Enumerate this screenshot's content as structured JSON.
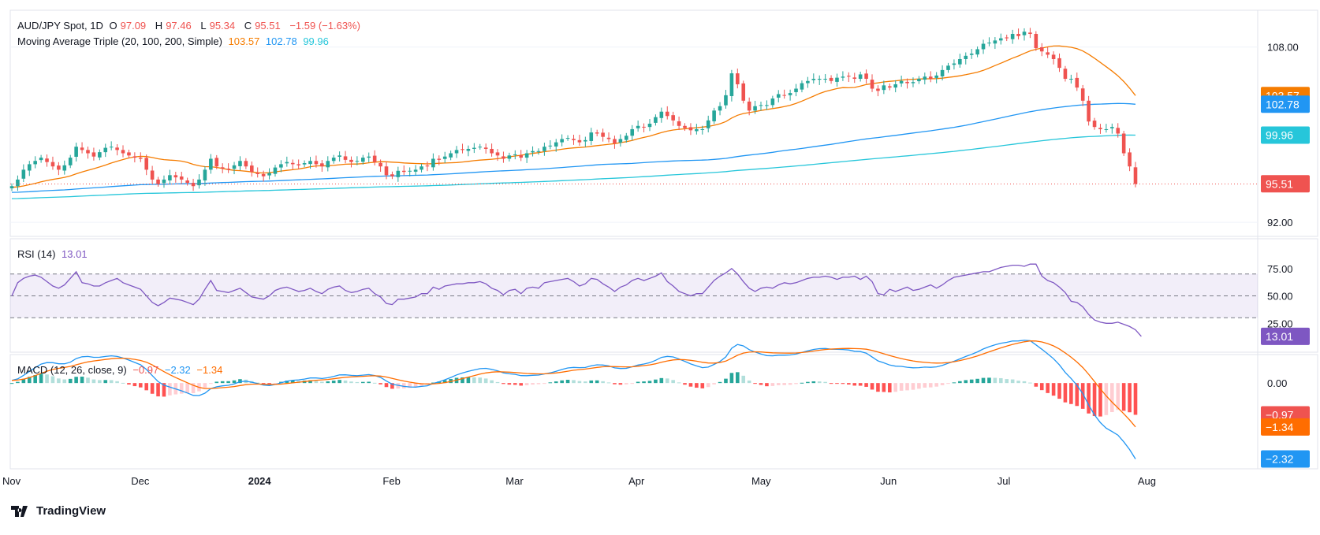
{
  "colors": {
    "up": "#26a69a",
    "down": "#ef5350",
    "ma20": "#f57c00",
    "ma100": "#2196f3",
    "ma200": "#26c6da",
    "rsi": "#7e57c2",
    "macd": "#2196f3",
    "signal": "#ff6d00",
    "grid": "#f0f3fa",
    "text": "#131722",
    "axis": "#131722"
  },
  "header": {
    "symbol": "AUD/JPY Spot, 1D",
    "o_label": "O",
    "o": "97.09",
    "h_label": "H",
    "h": "97.46",
    "l_label": "L",
    "l": "95.34",
    "c_label": "C",
    "c": "95.51",
    "change": "−1.59 (−1.63%)"
  },
  "ma_legend": {
    "label": "Moving Average Triple (20, 100, 200, Simple)",
    "v1": "103.57",
    "v2": "102.78",
    "v3": "99.96"
  },
  "rsi_legend": {
    "label": "RSI (14)",
    "value": "13.01"
  },
  "macd_legend": {
    "label": "MACD (12, 26, close, 9)",
    "hist": "−0.97",
    "macd": "−2.32",
    "signal": "−1.34"
  },
  "brand": "TradingView",
  "chart_data": {
    "type": "candlestick",
    "price_axis": {
      "ylim": [
        91,
        111
      ],
      "ticks": [
        "108.00",
        "92.00"
      ],
      "partial_tick": "96.00"
    },
    "price_badges": [
      {
        "label": "103.57",
        "value": 103.57,
        "color": "#f57c00"
      },
      {
        "label": "102.78",
        "value": 102.78,
        "color": "#2196f3"
      },
      {
        "label": "99.96",
        "value": 99.96,
        "color": "#26c6da"
      },
      {
        "label": "95.51",
        "value": 95.51,
        "color": "#ef5350"
      }
    ],
    "x_labels": [
      {
        "label": "Nov",
        "bar": 0
      },
      {
        "label": "Dec",
        "bar": 22
      },
      {
        "label": "2024",
        "bar": 42
      },
      {
        "label": "Feb",
        "bar": 65
      },
      {
        "label": "Mar",
        "bar": 86
      },
      {
        "label": "Apr",
        "bar": 107
      },
      {
        "label": "May",
        "bar": 128
      },
      {
        "label": "Jun",
        "bar": 150
      },
      {
        "label": "Jul",
        "bar": 170
      },
      {
        "label": "Aug",
        "bar": 194
      }
    ],
    "closes": [
      95.3,
      95.9,
      96.8,
      97.3,
      97.6,
      97.9,
      97.5,
      97.1,
      96.8,
      97.2,
      97.9,
      98.9,
      98.6,
      98.3,
      98.0,
      98.4,
      98.8,
      98.9,
      98.6,
      98.3,
      98.1,
      97.9,
      97.8,
      96.8,
      95.9,
      95.5,
      95.9,
      96.3,
      96.1,
      95.9,
      95.6,
      95.3,
      95.9,
      96.8,
      97.8,
      97.1,
      96.9,
      96.8,
      97.2,
      97.6,
      97.1,
      96.6,
      96.4,
      96.2,
      96.5,
      97.0,
      97.3,
      97.5,
      97.3,
      97.2,
      97.4,
      97.6,
      97.3,
      97.1,
      97.6,
      97.9,
      98.1,
      97.7,
      97.5,
      97.6,
      97.9,
      98.0,
      97.5,
      97.1,
      96.3,
      96.2,
      96.7,
      96.6,
      96.7,
      96.8,
      97.1,
      97.1,
      97.8,
      97.7,
      98.0,
      98.3,
      98.6,
      98.6,
      98.7,
      98.8,
      98.9,
      98.7,
      98.3,
      98.1,
      97.8,
      98.1,
      98.2,
      97.9,
      98.3,
      98.5,
      98.5,
      98.9,
      99.0,
      99.3,
      99.6,
      99.7,
      99.5,
      99.3,
      99.5,
      100.2,
      100.1,
      99.8,
      99.6,
      99.2,
      99.6,
      99.9,
      100.5,
      100.8,
      100.7,
      101.0,
      101.6,
      102.1,
      101.7,
      101.3,
      100.8,
      100.6,
      100.4,
      100.5,
      100.5,
      101.3,
      102.2,
      102.6,
      103.6,
      105.6,
      104.6,
      103.1,
      102.2,
      102.6,
      102.7,
      102.7,
      103.3,
      103.7,
      103.6,
      103.8,
      104.2,
      104.7,
      104.9,
      105.1,
      105.1,
      105.1,
      104.9,
      105.2,
      105.3,
      105.3,
      105.1,
      105.5,
      105.1,
      104.2,
      104.0,
      104.5,
      104.3,
      104.6,
      104.9,
      104.7,
      104.8,
      105.1,
      105.3,
      105.1,
      105.4,
      105.9,
      106.3,
      106.5,
      106.9,
      107.2,
      107.4,
      107.8,
      108.3,
      108.4,
      108.6,
      108.8,
      108.8,
      109.2,
      109.0,
      109.4,
      109.2,
      107.9,
      107.6,
      107.3,
      106.9,
      106.1,
      105.1,
      105.1,
      104.3,
      103.1,
      101.2,
      100.7,
      100.5,
      100.5,
      100.7,
      100.1,
      98.3,
      97.1,
      95.5
    ],
    "ma": [
      {
        "name": "MA 20",
        "last": 103.57
      },
      {
        "name": "MA 100",
        "last": 102.78
      },
      {
        "name": "MA 200",
        "last": 99.96
      }
    ],
    "rsi": {
      "ylim": [
        0,
        100
      ],
      "ticks": [
        "75.00",
        "50.00",
        "25.00"
      ],
      "bands": [
        30,
        50,
        70
      ],
      "last": 13.01,
      "values": [
        50,
        62,
        66,
        68,
        69,
        67,
        63,
        59,
        57,
        60,
        66,
        72,
        62,
        61,
        59,
        59,
        62,
        64,
        66,
        62,
        60,
        58,
        56,
        50,
        44,
        41,
        44,
        48,
        47,
        46,
        44,
        42,
        47,
        56,
        64,
        55,
        54,
        53,
        55,
        57,
        53,
        49,
        48,
        47,
        50,
        55,
        57,
        58,
        56,
        54,
        55,
        57,
        54,
        52,
        56,
        58,
        59,
        55,
        53,
        54,
        56,
        57,
        52,
        49,
        43,
        42,
        47,
        47,
        48,
        49,
        52,
        52,
        58,
        56,
        59,
        60,
        61,
        61,
        62,
        62,
        63,
        61,
        57,
        55,
        51,
        55,
        56,
        52,
        57,
        58,
        57,
        62,
        63,
        64,
        65,
        66,
        63,
        59,
        61,
        66,
        65,
        61,
        58,
        54,
        58,
        60,
        64,
        66,
        64,
        66,
        68,
        71,
        63,
        59,
        54,
        52,
        50,
        52,
        52,
        58,
        64,
        68,
        71,
        75,
        70,
        63,
        57,
        54,
        57,
        58,
        57,
        60,
        62,
        61,
        62,
        64,
        66,
        67,
        67,
        68,
        67,
        65,
        67,
        67,
        68,
        65,
        68,
        63,
        52,
        51,
        56,
        54,
        56,
        58,
        55,
        56,
        58,
        60,
        57,
        60,
        64,
        67,
        68,
        69,
        70,
        71,
        72,
        72,
        74,
        76,
        77,
        78,
        78,
        77,
        79,
        79,
        68,
        64,
        62,
        58,
        53,
        45,
        44,
        40,
        33,
        28,
        26,
        25,
        25,
        26,
        24,
        22,
        19,
        13
      ]
    },
    "macd": {
      "ticks": [
        "0.00"
      ],
      "badges": [
        {
          "label": "−0.97",
          "value": -0.97,
          "color": "#ef5350"
        },
        {
          "label": "−1.34",
          "value": -1.34,
          "color": "#ff6d00"
        },
        {
          "label": "−2.32",
          "value": -2.32,
          "color": "#2196f3"
        }
      ],
      "last_hist": -0.97,
      "last_macd": -2.32,
      "last_signal": -1.34
    }
  }
}
